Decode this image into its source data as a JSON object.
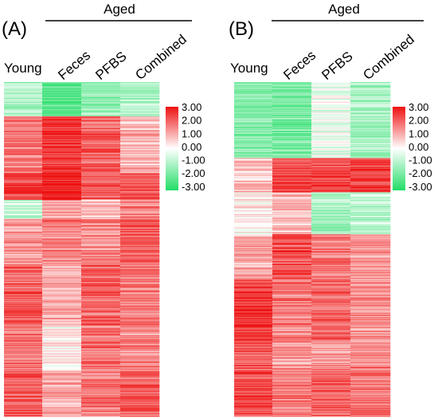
{
  "chart_data": [
    {
      "type": "heatmap",
      "panel_label": "(A)",
      "group_label": "Aged",
      "columns": [
        "Young",
        "Feces",
        "PFBS",
        "Combined"
      ],
      "colorbar": {
        "ticks": [
          "3.00",
          "2.00",
          "1.00",
          "0.00",
          "-1.00",
          "-2.00",
          "-3.00"
        ],
        "range": [
          -3,
          3
        ],
        "low_color": "#22dd66",
        "mid_color": "#ffffff",
        "high_color": "#ee1111"
      },
      "blocks": [
        {
          "rows": 45,
          "values": [
            -1.2,
            -2.3,
            -1.4,
            -1.1
          ]
        },
        {
          "rows": 75,
          "values": [
            1.6,
            2.7,
            2.0,
            0.9
          ]
        },
        {
          "rows": 35,
          "values": [
            2.5,
            2.9,
            1.9,
            2.2
          ]
        },
        {
          "rows": 25,
          "values": [
            -0.8,
            1.2,
            0.8,
            1.6
          ]
        },
        {
          "rows": 60,
          "values": [
            1.3,
            1.6,
            1.5,
            2.1
          ]
        },
        {
          "rows": 80,
          "values": [
            2.0,
            1.0,
            2.0,
            1.6
          ]
        },
        {
          "rows": 60,
          "values": [
            1.8,
            0.3,
            1.8,
            1.5
          ]
        },
        {
          "rows": 60,
          "values": [
            2.0,
            1.0,
            1.7,
            2.0
          ]
        }
      ]
    },
    {
      "type": "heatmap",
      "panel_label": "(B)",
      "group_label": "Aged",
      "columns": [
        "Young",
        "Feces",
        "PFBS",
        "Combined"
      ],
      "colorbar": {
        "ticks": [
          "3.00",
          "2.00",
          "1.00",
          "0.00",
          "-1.00",
          "-2.00",
          "-3.00"
        ],
        "range": [
          -3,
          3
        ],
        "low_color": "#22dd66",
        "mid_color": "#ffffff",
        "high_color": "#ee1111"
      },
      "blocks": [
        {
          "rows": 100,
          "values": [
            -1.6,
            -1.8,
            -0.3,
            -1.2
          ]
        },
        {
          "rows": 45,
          "values": [
            0.8,
            2.3,
            2.4,
            2.4
          ]
        },
        {
          "rows": 55,
          "values": [
            0.2,
            0.8,
            -1.2,
            -0.9
          ]
        },
        {
          "rows": 60,
          "values": [
            1.0,
            2.3,
            1.6,
            1.4
          ]
        },
        {
          "rows": 80,
          "values": [
            2.6,
            1.7,
            1.9,
            1.4
          ]
        },
        {
          "rows": 40,
          "values": [
            2.0,
            1.3,
            1.4,
            1.5
          ]
        },
        {
          "rows": 60,
          "values": [
            2.2,
            1.6,
            2.0,
            1.7
          ]
        }
      ]
    }
  ]
}
